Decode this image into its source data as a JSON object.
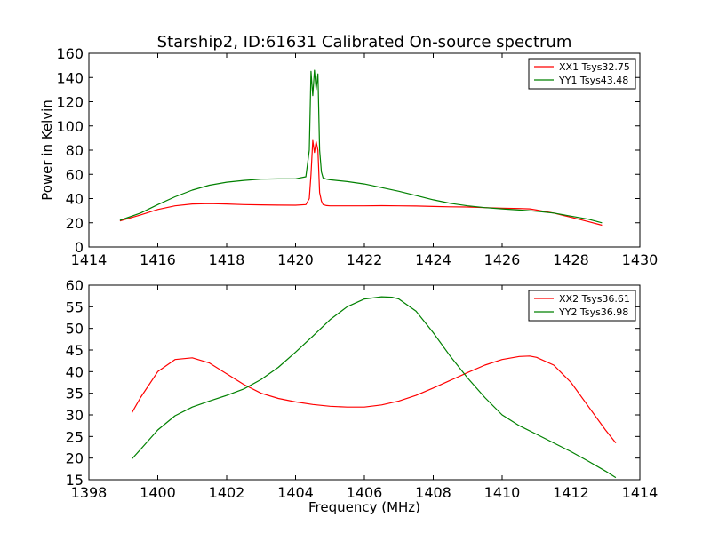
{
  "chart_data": [
    {
      "type": "line",
      "title": "Starship2, ID:61631 Calibrated On-source spectrum",
      "xlabel": "",
      "ylabel": "Power in Kelvin",
      "xlim": [
        1414,
        1430
      ],
      "ylim": [
        0,
        160
      ],
      "xticks": [
        1414,
        1416,
        1418,
        1420,
        1422,
        1424,
        1426,
        1428,
        1430
      ],
      "yticks": [
        0,
        20,
        40,
        60,
        80,
        100,
        120,
        140,
        160
      ],
      "legend_position": "top-right",
      "grid": false,
      "series": [
        {
          "name": "XX1 Tsys32.75",
          "color": "#ff0000",
          "x": [
            1414.9,
            1415.5,
            1416.0,
            1416.5,
            1417.0,
            1417.5,
            1418.0,
            1418.5,
            1419.0,
            1419.5,
            1420.0,
            1420.3,
            1420.4,
            1420.45,
            1420.5,
            1420.55,
            1420.6,
            1420.65,
            1420.7,
            1420.75,
            1420.8,
            1420.9,
            1421.0,
            1421.5,
            1422.0,
            1422.5,
            1423.0,
            1423.5,
            1424.0,
            1424.5,
            1425.0,
            1425.5,
            1426.0,
            1426.5,
            1426.8,
            1427.0,
            1427.5,
            1428.0,
            1428.5,
            1428.9
          ],
          "y": [
            21.5,
            26.5,
            31,
            34,
            35.5,
            35.8,
            35.5,
            35,
            34.8,
            34.6,
            34.5,
            35,
            40,
            60,
            88,
            78,
            87,
            80,
            45,
            38,
            35,
            34.2,
            34,
            34,
            34,
            34.1,
            34,
            33.8,
            33.5,
            33.2,
            33,
            32.5,
            32,
            31.8,
            31.5,
            30.5,
            28,
            24.5,
            21,
            18
          ]
        },
        {
          "name": "YY1 Tsys43.48",
          "color": "#008000",
          "x": [
            1414.9,
            1415.5,
            1416.0,
            1416.5,
            1417.0,
            1417.5,
            1418.0,
            1418.5,
            1419.0,
            1419.5,
            1420.0,
            1420.3,
            1420.4,
            1420.45,
            1420.5,
            1420.55,
            1420.6,
            1420.65,
            1420.7,
            1420.75,
            1420.8,
            1420.9,
            1421.0,
            1421.5,
            1422.0,
            1422.5,
            1423.0,
            1423.5,
            1424.0,
            1424.5,
            1425.0,
            1425.5,
            1426.0,
            1426.5,
            1427.0,
            1427.5,
            1428.0,
            1428.5,
            1428.9
          ],
          "y": [
            22,
            28,
            35,
            41.5,
            47,
            51,
            53.5,
            55,
            56,
            56.2,
            56.3,
            58,
            80,
            145,
            125,
            146,
            130,
            143,
            80,
            62,
            57,
            56,
            55.5,
            54,
            52,
            49,
            46,
            42.5,
            39,
            36,
            34,
            32.5,
            31.5,
            30.5,
            29.5,
            28,
            25.5,
            23,
            20
          ]
        }
      ]
    },
    {
      "type": "line",
      "title": "",
      "xlabel": "Frequency (MHz)",
      "ylabel": "",
      "xlim": [
        1398,
        1414
      ],
      "ylim": [
        15,
        60
      ],
      "xticks": [
        1398,
        1400,
        1402,
        1404,
        1406,
        1408,
        1410,
        1412,
        1414
      ],
      "yticks": [
        15,
        20,
        25,
        30,
        35,
        40,
        45,
        50,
        55,
        60
      ],
      "legend_position": "top-right",
      "grid": false,
      "series": [
        {
          "name": "XX2 Tsys36.61",
          "color": "#ff0000",
          "x": [
            1399.25,
            1399.5,
            1400.0,
            1400.5,
            1401.0,
            1401.5,
            1402.0,
            1402.5,
            1403.0,
            1403.5,
            1404.0,
            1404.5,
            1405.0,
            1405.5,
            1406.0,
            1406.5,
            1407.0,
            1407.5,
            1408.0,
            1408.5,
            1409.0,
            1409.5,
            1410.0,
            1410.5,
            1410.8,
            1411.0,
            1411.5,
            1412.0,
            1412.5,
            1413.0,
            1413.3
          ],
          "y": [
            30.5,
            34,
            40,
            42.8,
            43.2,
            42,
            39.5,
            37,
            35,
            33.8,
            33,
            32.4,
            32,
            31.8,
            31.8,
            32.3,
            33.2,
            34.5,
            36.2,
            38,
            39.8,
            41.5,
            42.8,
            43.5,
            43.6,
            43.3,
            41.5,
            37.5,
            32,
            26.5,
            23.5
          ]
        },
        {
          "name": "YY2 Tsys36.98",
          "color": "#008000",
          "x": [
            1399.25,
            1399.5,
            1400.0,
            1400.5,
            1401.0,
            1401.5,
            1402.0,
            1402.5,
            1403.0,
            1403.5,
            1404.0,
            1404.5,
            1405.0,
            1405.5,
            1406.0,
            1406.5,
            1406.8,
            1407.0,
            1407.5,
            1408.0,
            1408.5,
            1409.0,
            1409.5,
            1410.0,
            1410.5,
            1411.0,
            1411.5,
            1412.0,
            1412.5,
            1413.0,
            1413.3
          ],
          "y": [
            19.8,
            22,
            26.5,
            29.8,
            31.8,
            33.2,
            34.5,
            36,
            38.2,
            41,
            44.5,
            48.2,
            52,
            55,
            56.8,
            57.3,
            57.2,
            56.8,
            54,
            49,
            43.5,
            38.5,
            34,
            30,
            27.5,
            25.5,
            23.5,
            21.5,
            19.3,
            17,
            15.5
          ]
        }
      ]
    }
  ]
}
